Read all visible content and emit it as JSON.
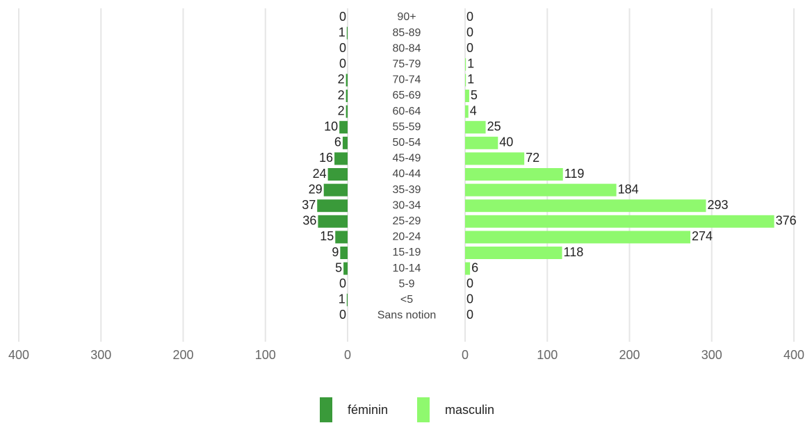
{
  "chart_data": {
    "type": "pyramid",
    "categories": [
      "90+",
      "85-89",
      "80-84",
      "75-79",
      "70-74",
      "65-69",
      "60-64",
      "55-59",
      "50-54",
      "45-49",
      "40-44",
      "35-39",
      "30-34",
      "25-29",
      "20-24",
      "15-19",
      "10-14",
      "5-9",
      "<5",
      "Sans notion"
    ],
    "series": [
      {
        "name": "féminin",
        "color": "#3a9a3a",
        "values": [
          0,
          1,
          0,
          0,
          2,
          2,
          2,
          10,
          6,
          16,
          24,
          29,
          37,
          36,
          15,
          9,
          5,
          0,
          1,
          0
        ]
      },
      {
        "name": "masculin",
        "color": "#8ff96e",
        "values": [
          0,
          0,
          0,
          1,
          1,
          5,
          4,
          25,
          40,
          72,
          119,
          184,
          293,
          376,
          274,
          118,
          6,
          0,
          0,
          0
        ]
      }
    ],
    "xlim": [
      0,
      400
    ],
    "xticks": [
      0,
      100,
      200,
      300,
      400
    ],
    "grid": true,
    "legend": "bottom"
  }
}
